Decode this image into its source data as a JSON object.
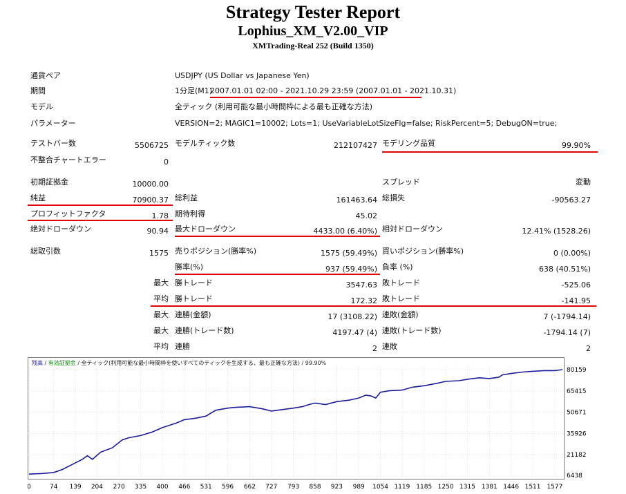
{
  "header": {
    "title": "Strategy Tester Report",
    "subtitle": "Lophius_XM_V2.00_VIP",
    "server": "XMTrading-Real 252 (Build 1350)"
  },
  "info": {
    "pair_label": "通貨ペア",
    "pair_value": "USDJPY (US Dollar vs Japanese Yen)",
    "period_label": "期間",
    "period_prefix": "1分足(M1)",
    "period_value": "2007.01.01 02:00 - 2021.10.29 23:59 (2007.01.01 - 2021.10.31)",
    "model_label": "モデル",
    "model_value": "全ティック (利用可能な最小時間枠による最も正確な方法)",
    "params_label": "パラメーター",
    "params_value": "VERSION=2; MAGIC1=10002; Lots=1; UseVariableLotSizeFlg=false; RiskPercent=5; DebugON=true;"
  },
  "stats": {
    "bars_label": "テストバー数",
    "bars_value": "5506725",
    "ticks_label": "モデルティック数",
    "ticks_value": "212107427",
    "quality_label": "モデリング品質",
    "quality_value": "99.90%",
    "mismatch_label": "不整合チャートエラー",
    "mismatch_value": "0",
    "deposit_label": "初期証拠金",
    "deposit_value": "10000.00",
    "spread_label": "スプレッド",
    "spread_value": "変動",
    "netprofit_label": "純益",
    "netprofit_value": "70900.37",
    "grossprofit_label": "総利益",
    "grossprofit_value": "161463.64",
    "grossloss_label": "総損失",
    "grossloss_value": "-90563.27",
    "pf_label": "プロフィットファクタ",
    "pf_value": "1.78",
    "payoff_label": "期待利得",
    "payoff_value": "45.02",
    "absdd_label": "絶対ドローダウン",
    "absdd_value": "90.94",
    "maxdd_label": "最大ドローダウン",
    "maxdd_value": "4433.00 (6.40%)",
    "reldd_label": "相対ドローダウン",
    "reldd_value": "12.41% (1528.26)",
    "trades_label": "総取引数",
    "trades_value": "1575",
    "short_label": "売りポジション(勝率%)",
    "short_value": "1575 (59.49%)",
    "long_label": "買いポジション(勝率%)",
    "long_value": "0 (0.00%)",
    "winrate_label": "勝率(%)",
    "winrate_value": "937 (59.49%)",
    "lossrate_label": "負率 (%)",
    "lossrate_value": "638 (40.51%)",
    "max_label": "最大",
    "avg_label": "平均",
    "largest_win_label": "勝トレード",
    "largest_win_value": "3547.63",
    "largest_loss_label": "敗トレード",
    "largest_loss_value": "-525.06",
    "avg_win_label": "勝トレード",
    "avg_win_value": "172.32",
    "avg_loss_label": "敗トレード",
    "avg_loss_value": "-141.95",
    "cons_wins_label": "連勝(金額)",
    "cons_wins_value": "17 (3108.22)",
    "cons_losses_label": "連敗(金額)",
    "cons_losses_value": "7 (-1794.14)",
    "cons_profit_label": "連勝(トレード数)",
    "cons_profit_value": "4197.47 (4)",
    "cons_loss_label": "連敗(トレード数)",
    "cons_loss_value": "-1794.14 (7)",
    "avg_cons_wins_label": "連勝",
    "avg_cons_wins_value": "2",
    "avg_cons_losses_label": "連敗",
    "avg_cons_losses_value": "2"
  },
  "chart_legend": {
    "balance": "残高",
    "sep1": " / ",
    "equity": "有効証拠金",
    "sep2": " / ",
    "model": "全ティック(利用可能な最小時間枠を使いすべてのティックを生成する、最も正確な方法)",
    "sep3": " / ",
    "quality": "99.90%"
  },
  "colors": {
    "highlight": "#e00000",
    "balance_line": "#1a1a9c",
    "grid": "#c8c8c8"
  },
  "chart_data": {
    "type": "line",
    "series": [],
    "x_ticks": [
      "0",
      "74",
      "139",
      "204",
      "270",
      "335",
      "400",
      "466",
      "531",
      "596",
      "662",
      "727",
      "793",
      "858",
      "923",
      "989",
      "1054",
      "1119",
      "1185",
      "1250",
      "1315",
      "1381",
      "1446",
      "1511",
      "1577"
    ],
    "y_ticks": [
      "80159",
      "65415",
      "50671",
      "35926",
      "21182",
      "6438"
    ],
    "ylim": [
      6438,
      80159
    ],
    "xlim": [
      0,
      1600
    ],
    "points": [
      [
        0,
        7800
      ],
      [
        40,
        8200
      ],
      [
        74,
        8900
      ],
      [
        100,
        11000
      ],
      [
        130,
        14500
      ],
      [
        160,
        18000
      ],
      [
        175,
        20500
      ],
      [
        190,
        18000
      ],
      [
        215,
        23000
      ],
      [
        250,
        26000
      ],
      [
        280,
        31500
      ],
      [
        300,
        33000
      ],
      [
        335,
        34500
      ],
      [
        370,
        37000
      ],
      [
        400,
        40000
      ],
      [
        440,
        43000
      ],
      [
        466,
        45500
      ],
      [
        500,
        46500
      ],
      [
        531,
        48000
      ],
      [
        560,
        52000
      ],
      [
        596,
        53500
      ],
      [
        620,
        54000
      ],
      [
        662,
        54500
      ],
      [
        700,
        53000
      ],
      [
        727,
        51500
      ],
      [
        760,
        52500
      ],
      [
        793,
        53500
      ],
      [
        820,
        54500
      ],
      [
        840,
        56000
      ],
      [
        858,
        57000
      ],
      [
        890,
        56000
      ],
      [
        923,
        58000
      ],
      [
        960,
        59000
      ],
      [
        989,
        60500
      ],
      [
        1010,
        62500
      ],
      [
        1025,
        62000
      ],
      [
        1040,
        60500
      ],
      [
        1054,
        64500
      ],
      [
        1080,
        65500
      ],
      [
        1119,
        66000
      ],
      [
        1150,
        68000
      ],
      [
        1185,
        69000
      ],
      [
        1220,
        70500
      ],
      [
        1250,
        72000
      ],
      [
        1290,
        72500
      ],
      [
        1315,
        73500
      ],
      [
        1350,
        74500
      ],
      [
        1381,
        74000
      ],
      [
        1410,
        75000
      ],
      [
        1420,
        76500
      ],
      [
        1446,
        77500
      ],
      [
        1480,
        78500
      ],
      [
        1511,
        79000
      ],
      [
        1545,
        79500
      ],
      [
        1577,
        79500
      ],
      [
        1600,
        80159
      ]
    ]
  }
}
